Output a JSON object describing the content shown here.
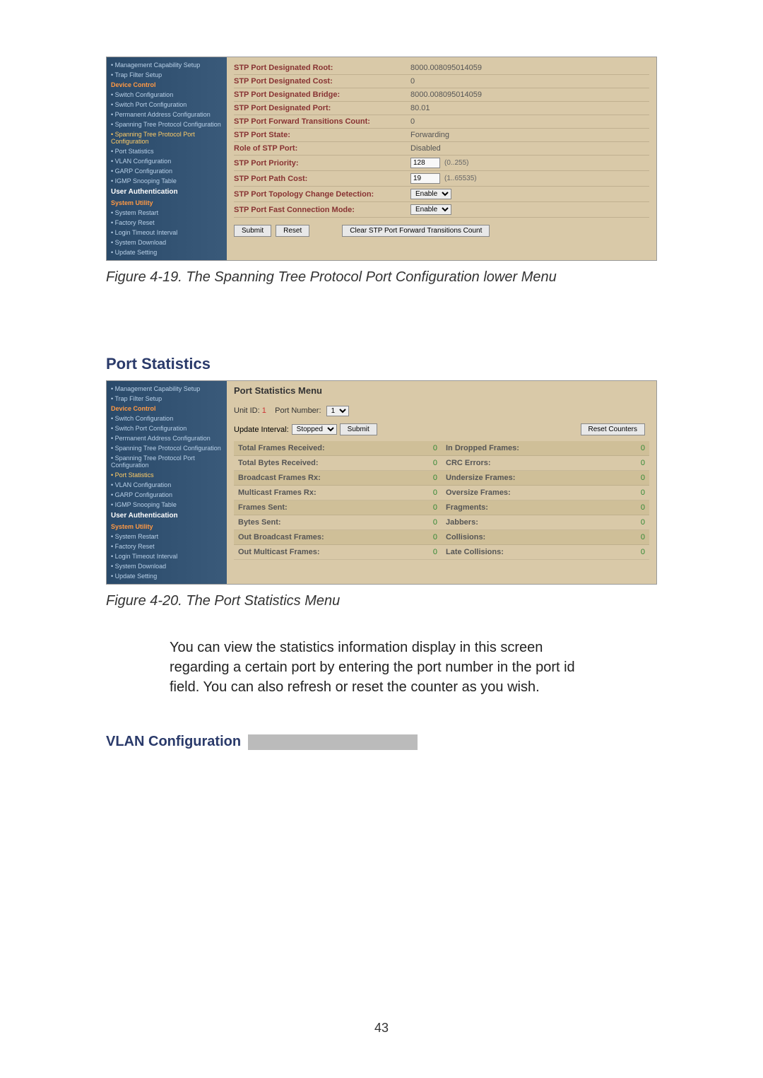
{
  "figure1": {
    "sidebar": {
      "items": [
        {
          "label": "Management Capability Setup",
          "cls": ""
        },
        {
          "label": "Trap Filter Setup",
          "cls": ""
        },
        {
          "label": "Device Control",
          "cls": "sidebar-section-orange"
        },
        {
          "label": "Switch Configuration",
          "cls": ""
        },
        {
          "label": "Switch Port Configuration",
          "cls": ""
        },
        {
          "label": "Permanent Address Configuration",
          "cls": ""
        },
        {
          "label": "Spanning Tree Protocol Configuration",
          "cls": ""
        },
        {
          "label": "Spanning Tree Protocol Port Configuration",
          "cls": "highlighted"
        },
        {
          "label": "Port Statistics",
          "cls": ""
        },
        {
          "label": "VLAN Configuration",
          "cls": ""
        },
        {
          "label": "GARP Configuration",
          "cls": ""
        },
        {
          "label": "IGMP Snooping Table",
          "cls": ""
        },
        {
          "label": "User Authentication",
          "cls": "sidebar-heading"
        },
        {
          "label": "System Utility",
          "cls": "sidebar-section-orange"
        },
        {
          "label": "System Restart",
          "cls": ""
        },
        {
          "label": "Factory Reset",
          "cls": ""
        },
        {
          "label": "Login Timeout Interval",
          "cls": ""
        },
        {
          "label": "System Download",
          "cls": ""
        },
        {
          "label": "Update Setting",
          "cls": ""
        }
      ]
    },
    "rows": [
      {
        "label": "STP Port Designated Root:",
        "value": "8000.008095014059"
      },
      {
        "label": "STP Port Designated Cost:",
        "value": "0"
      },
      {
        "label": "STP Port Designated Bridge:",
        "value": "8000.008095014059"
      },
      {
        "label": "STP Port Designated Port:",
        "value": "80.01"
      },
      {
        "label": "STP Port Forward Transitions Count:",
        "value": "0"
      },
      {
        "label": "STP Port State:",
        "value": "Forwarding"
      },
      {
        "label": "Role of STP Port:",
        "value": "Disabled"
      }
    ],
    "priority": {
      "label": "STP Port Priority:",
      "value": "128",
      "hint": "(0..255)"
    },
    "pathCost": {
      "label": "STP Port Path Cost:",
      "value": "19",
      "hint": "(1..65535)"
    },
    "topology": {
      "label": "STP Port Topology Change Detection:",
      "value": "Enable"
    },
    "fastConn": {
      "label": "STP Port Fast Connection Mode:",
      "value": "Enable"
    },
    "buttons": {
      "submit": "Submit",
      "reset": "Reset",
      "clear": "Clear STP Port Forward Transitions Count"
    },
    "caption": "Figure 4-19. The Spanning Tree Protocol Port Configuration lower Menu"
  },
  "section2": {
    "heading": "Port Statistics"
  },
  "figure2": {
    "sidebar": {
      "items": [
        {
          "label": "Management Capability Setup",
          "cls": ""
        },
        {
          "label": "Trap Filter Setup",
          "cls": ""
        },
        {
          "label": "Device Control",
          "cls": "sidebar-section-orange"
        },
        {
          "label": "Switch Configuration",
          "cls": ""
        },
        {
          "label": "Switch Port Configuration",
          "cls": ""
        },
        {
          "label": "Permanent Address Configuration",
          "cls": ""
        },
        {
          "label": "Spanning Tree Protocol Configuration",
          "cls": ""
        },
        {
          "label": "Spanning Tree Protocol Port Configuration",
          "cls": ""
        },
        {
          "label": "Port Statistics",
          "cls": "highlighted"
        },
        {
          "label": "VLAN Configuration",
          "cls": ""
        },
        {
          "label": "GARP Configuration",
          "cls": ""
        },
        {
          "label": "IGMP Snooping Table",
          "cls": ""
        },
        {
          "label": "User Authentication",
          "cls": "sidebar-heading"
        },
        {
          "label": "System Utility",
          "cls": "sidebar-section-orange"
        },
        {
          "label": "System Restart",
          "cls": ""
        },
        {
          "label": "Factory Reset",
          "cls": ""
        },
        {
          "label": "Login Timeout Interval",
          "cls": ""
        },
        {
          "label": "System Download",
          "cls": ""
        },
        {
          "label": "Update Setting",
          "cls": ""
        }
      ]
    },
    "title": "Port Statistics Menu",
    "unitLabel": "Unit ID:",
    "unitVal": "1",
    "portLabel": "Port Number:",
    "portVal": "1",
    "updateLabel": "Update Interval:",
    "updateVal": "Stopped",
    "submitBtn": "Submit",
    "resetBtn": "Reset Counters",
    "stats": [
      {
        "l1": "Total Frames Received:",
        "v1": "0",
        "l2": "In Dropped Frames:",
        "v2": "0",
        "shaded": true
      },
      {
        "l1": "Total Bytes Received:",
        "v1": "0",
        "l2": "CRC Errors:",
        "v2": "0",
        "shaded": false
      },
      {
        "l1": "Broadcast Frames Rx:",
        "v1": "0",
        "l2": "Undersize Frames:",
        "v2": "0",
        "shaded": true
      },
      {
        "l1": "Multicast Frames Rx:",
        "v1": "0",
        "l2": "Oversize Frames:",
        "v2": "0",
        "shaded": false
      },
      {
        "l1": "Frames Sent:",
        "v1": "0",
        "l2": "Fragments:",
        "v2": "0",
        "shaded": true
      },
      {
        "l1": "Bytes Sent:",
        "v1": "0",
        "l2": "Jabbers:",
        "v2": "0",
        "shaded": false
      },
      {
        "l1": "Out Broadcast Frames:",
        "v1": "0",
        "l2": "Collisions:",
        "v2": "0",
        "shaded": true
      },
      {
        "l1": "Out Multicast Frames:",
        "v1": "0",
        "l2": "Late Collisions:",
        "v2": "0",
        "shaded": false
      }
    ],
    "caption": "Figure 4-20. The Port Statistics Menu"
  },
  "bodyText": "You can view the statistics information display in this screen regarding a certain port by entering the port number in the port id field. You can also refresh or reset the counter as you wish.",
  "vlanHeading": "VLAN Configuration",
  "pageNumber": "43"
}
